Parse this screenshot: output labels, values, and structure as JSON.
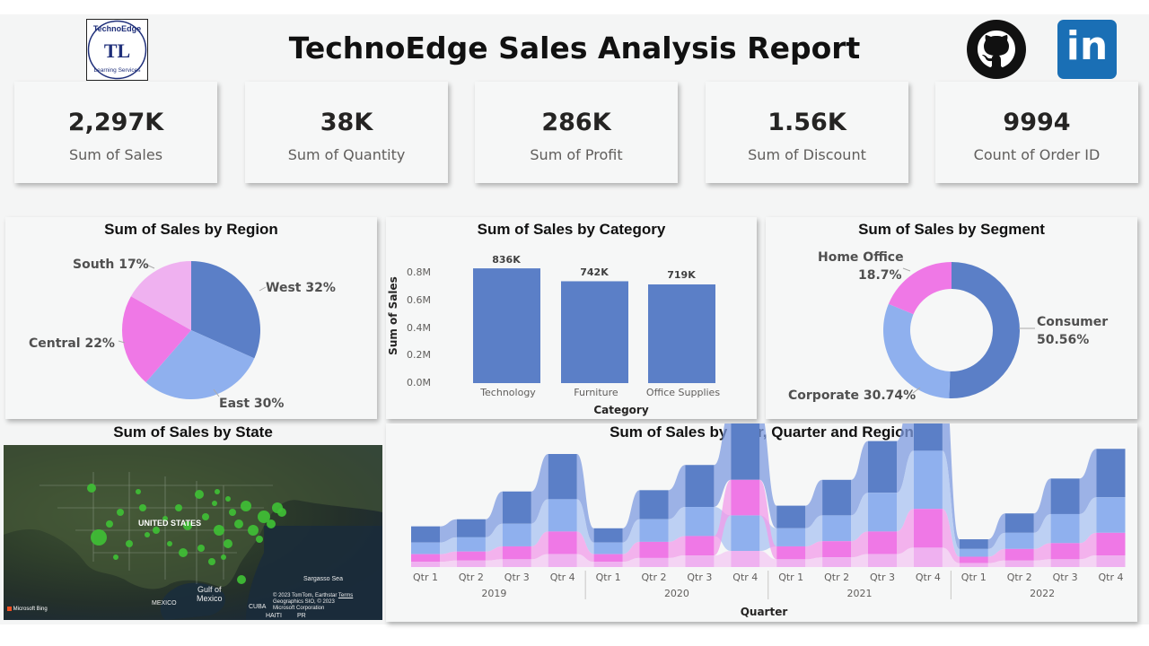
{
  "header": {
    "title": "TechnoEdge Sales Analysis Report",
    "logo": {
      "top_text": "TechnoEdge",
      "monogram": "TL",
      "bottom_text": "Learning Services"
    },
    "social": [
      {
        "name": "github",
        "icon": "github-icon"
      },
      {
        "name": "linkedin",
        "icon": "linkedin-icon",
        "text": "in"
      }
    ]
  },
  "kpis": [
    {
      "value": "2,297K",
      "label": "Sum of Sales"
    },
    {
      "value": "38K",
      "label": "Sum of Quantity"
    },
    {
      "value": "286K",
      "label": "Sum of Profit"
    },
    {
      "value": "1.56K",
      "label": "Sum of Discount"
    },
    {
      "value": "9994",
      "label": "Count of Order ID"
    }
  ],
  "colors": {
    "blue": "#5b7fc7",
    "light_blue": "#8fb0ee",
    "pink": "#ef78e6",
    "light_pink": "#efb1f0",
    "accent_text": "#505050"
  },
  "region_pie": {
    "title": "Sum of Sales by Region",
    "labels": {
      "west": "West 32%",
      "east": "East 30%",
      "central": "Central 22%",
      "south": "South 17%"
    }
  },
  "category_bar": {
    "title": "Sum of Sales by Category",
    "ylabel": "Sum of Sales",
    "xlabel": "Category",
    "yticks": [
      "0.8M",
      "0.6M",
      "0.4M",
      "0.2M",
      "0.0M"
    ],
    "categories": [
      "Technology",
      "Furniture",
      "Office Supplies"
    ],
    "data_labels": [
      "836K",
      "742K",
      "719K"
    ]
  },
  "segment_donut": {
    "title": "Sum of Sales by Segment",
    "labels": {
      "consumer": "Consumer",
      "consumer_pct": "50.56%",
      "corporate": "Corporate 30.74%",
      "home_office": "Home Office",
      "home_office_pct": "18.7%"
    }
  },
  "state_map": {
    "title": "Sum of Sales by State",
    "labels": {
      "country": "UNITED STATES",
      "gulf_1": "Gulf of",
      "gulf_2": "Mexico",
      "mexico": "MEXICO",
      "cuba": "CUBA",
      "haiti": "HAITI",
      "pr": "PR",
      "sargasso": "Sargasso Sea"
    },
    "attribution": {
      "line1": "© 2023 TomTom, Earthstar",
      "terms": "Terms",
      "line2": "Geographics SIO, © 2023",
      "line3": "Microsoft Corporation",
      "bing": "Microsoft Bing"
    }
  },
  "ribbon_chart": {
    "title": "Sum of Sales by Year, Quarter and Region",
    "xlabel": "Quarter",
    "quarters": [
      "Qtr 1",
      "Qtr 2",
      "Qtr 3",
      "Qtr 4"
    ],
    "years": [
      "2019",
      "2020",
      "2021",
      "2022"
    ]
  },
  "chart_data": [
    {
      "type": "pie",
      "title": "Sum of Sales by Region",
      "categories": [
        "West",
        "East",
        "Central",
        "South"
      ],
      "values": [
        32,
        30,
        22,
        17
      ],
      "colors": [
        "#5b7fc7",
        "#8fb0ee",
        "#ef78e6",
        "#efb1f0"
      ]
    },
    {
      "type": "bar",
      "title": "Sum of Sales by Category",
      "categories": [
        "Technology",
        "Furniture",
        "Office Supplies"
      ],
      "values": [
        836,
        742,
        719
      ],
      "xlabel": "Category",
      "ylabel": "Sum of Sales",
      "ylim": [
        0,
        0.9
      ],
      "grid": false
    },
    {
      "type": "pie",
      "title": "Sum of Sales by Segment",
      "categories": [
        "Consumer",
        "Corporate",
        "Home Office"
      ],
      "values": [
        50.56,
        30.74,
        18.7
      ],
      "colors": [
        "#5b7fc7",
        "#8fb0ee",
        "#ef78e6"
      ]
    },
    {
      "type": "area",
      "title": "Sum of Sales by Year, Quarter and Region",
      "xlabel": "Quarter",
      "x": [
        "2019 Qtr 1",
        "2019 Qtr 2",
        "2019 Qtr 3",
        "2019 Qtr 4",
        "2020 Qtr 1",
        "2020 Qtr 2",
        "2020 Qtr 3",
        "2020 Qtr 4",
        "2021 Qtr 1",
        "2021 Qtr 2",
        "2021 Qtr 3",
        "2021 Qtr 4",
        "2022 Qtr 1",
        "2022 Qtr 2",
        "2022 Qtr 3",
        "2022 Qtr 4"
      ],
      "series": [
        {
          "name": "West",
          "color": "#5b7fc7",
          "values": [
            25,
            28,
            50,
            70,
            22,
            45,
            65,
            110,
            35,
            55,
            80,
            140,
            15,
            30,
            55,
            75
          ]
        },
        {
          "name": "East",
          "color": "#8fb0ee",
          "values": [
            18,
            22,
            35,
            50,
            18,
            35,
            45,
            55,
            28,
            40,
            60,
            90,
            12,
            25,
            45,
            55
          ]
        },
        {
          "name": "Central",
          "color": "#ef78e6",
          "values": [
            12,
            14,
            20,
            35,
            12,
            25,
            30,
            55,
            20,
            25,
            35,
            60,
            10,
            18,
            25,
            35
          ]
        },
        {
          "name": "South",
          "color": "#efb1f0",
          "values": [
            8,
            10,
            12,
            20,
            8,
            14,
            18,
            25,
            12,
            15,
            20,
            30,
            6,
            10,
            12,
            18
          ]
        }
      ]
    }
  ]
}
